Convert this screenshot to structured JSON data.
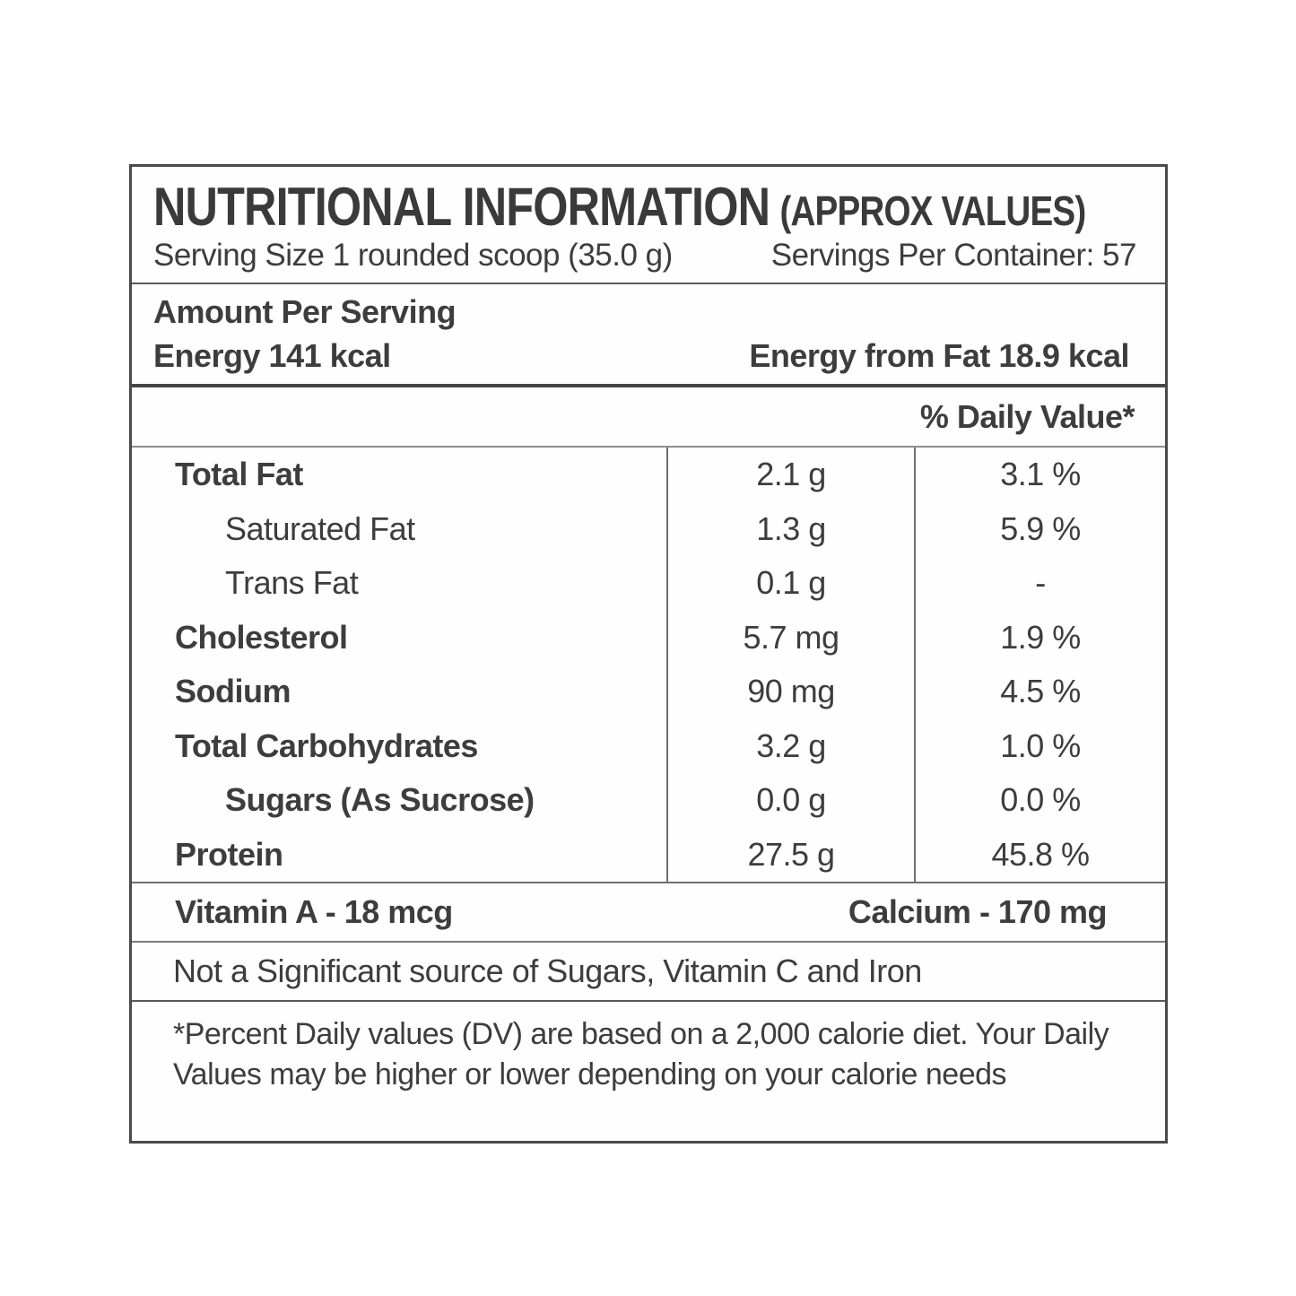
{
  "colors": {
    "text": "#3d3d3d",
    "border_dark": "#4a4a4a",
    "border_light": "#8e8e8e",
    "background": "#ffffff"
  },
  "header": {
    "title": "NUTRITIONAL INFORMATION",
    "title_suffix": "(APPROX VALUES)",
    "serving_size": "Serving Size 1 rounded scoop (35.0 g)",
    "servings_per_container": "Servings Per Container: 57"
  },
  "amount_section": {
    "heading": "Amount Per Serving",
    "energy": "Energy 141 kcal",
    "energy_from_fat": "Energy from Fat 18.9 kcal"
  },
  "daily_value_header": "% Daily Value*",
  "nutrients": [
    {
      "label": "Total Fat",
      "amount": "2.1 g",
      "daily_value": "3.1 %"
    },
    {
      "label": "Saturated Fat",
      "amount": "1.3 g",
      "daily_value": "5.9 %"
    },
    {
      "label": "Trans Fat",
      "amount": "0.1 g",
      "daily_value": "-"
    },
    {
      "label": "Cholesterol",
      "amount": "5.7 mg",
      "daily_value": "1.9 %"
    },
    {
      "label": "Sodium",
      "amount": "90 mg",
      "daily_value": "4.5 %"
    },
    {
      "label": "Total Carbohydrates",
      "amount": "3.2 g",
      "daily_value": "1.0 %"
    },
    {
      "label": "Sugars (As Sucrose)",
      "amount": "0.0 g",
      "daily_value": "0.0 %"
    },
    {
      "label": "Protein",
      "amount": "27.5 g",
      "daily_value": "45.8 %"
    }
  ],
  "micronutrients": {
    "vitamin_a": "Vitamin A - 18 mcg",
    "calcium": "Calcium - 170 mg"
  },
  "not_significant": "Not a Significant source of Sugars, Vitamin C and Iron",
  "footnote": "*Percent Daily values (DV) are based on a 2,000 calorie diet. Your Daily Values may be higher or lower depending on your calorie needs"
}
